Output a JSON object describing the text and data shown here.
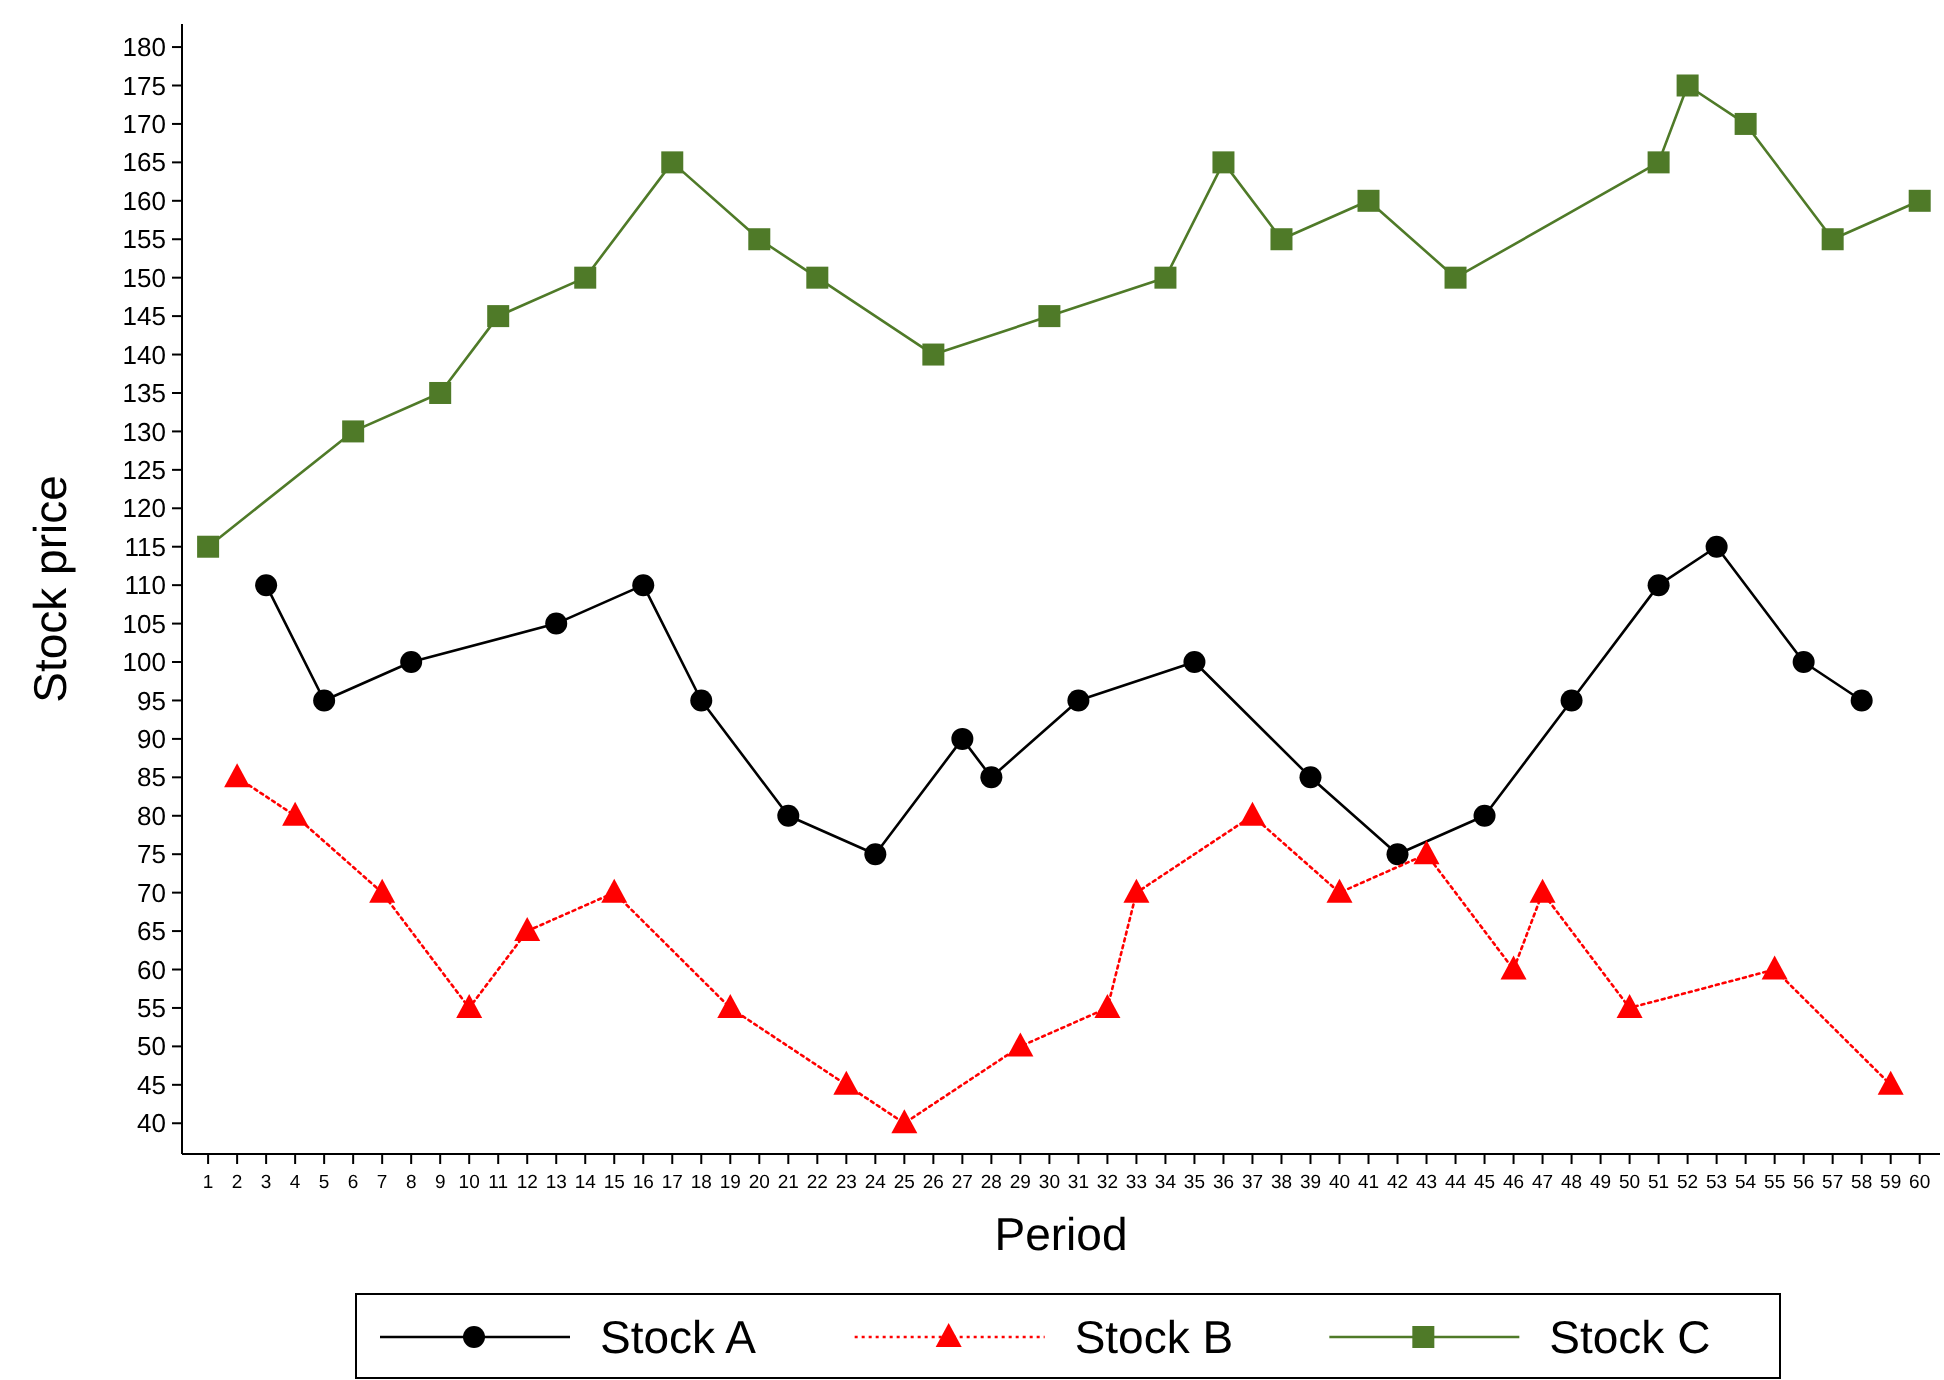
{
  "chart_data": {
    "type": "line",
    "xlabel": "Period",
    "ylabel": "Stock price",
    "xlim": [
      0.1,
      60.7
    ],
    "xticks": [
      1,
      2,
      3,
      4,
      5,
      6,
      7,
      8,
      9,
      10,
      11,
      12,
      13,
      14,
      15,
      16,
      17,
      18,
      19,
      20,
      21,
      22,
      23,
      24,
      25,
      26,
      27,
      28,
      29,
      30,
      31,
      32,
      33,
      34,
      35,
      36,
      37,
      38,
      39,
      40,
      41,
      42,
      43,
      44,
      45,
      46,
      47,
      48,
      49,
      50,
      51,
      52,
      53,
      54,
      55,
      56,
      57,
      58,
      59,
      60
    ],
    "ylim": [
      36,
      183
    ],
    "yticks": [
      40,
      45,
      50,
      55,
      60,
      65,
      70,
      75,
      80,
      85,
      90,
      95,
      100,
      105,
      110,
      115,
      120,
      125,
      130,
      135,
      140,
      145,
      150,
      155,
      160,
      165,
      170,
      175,
      180
    ],
    "grid": false,
    "legend": "bottom",
    "series": [
      {
        "name": "Stock A",
        "color": "#000000",
        "marker": "circle",
        "line_style": "solid",
        "x": [
          3,
          5,
          8,
          13,
          16,
          18,
          21,
          24,
          27,
          28,
          31,
          35,
          39,
          42,
          45,
          48,
          51,
          53,
          56,
          58
        ],
        "values": [
          110,
          95,
          100,
          105,
          110,
          95,
          80,
          75,
          90,
          85,
          95,
          100,
          85,
          75,
          80,
          95,
          110,
          115,
          100,
          95
        ]
      },
      {
        "name": "Stock B",
        "color": "#ff0000",
        "marker": "triangle",
        "line_style": "dotted",
        "x": [
          2,
          4,
          7,
          10,
          12,
          15,
          19,
          23,
          25,
          29,
          32,
          33,
          37,
          40,
          43,
          46,
          47,
          50,
          55,
          59
        ],
        "values": [
          85,
          80,
          70,
          55,
          65,
          70,
          55,
          45,
          40,
          50,
          55,
          70,
          80,
          70,
          75,
          60,
          70,
          55,
          60,
          45
        ]
      },
      {
        "name": "Stock C",
        "color": "#4f7a28",
        "marker": "square",
        "line_style": "solid",
        "x": [
          1,
          6,
          9,
          11,
          14,
          17,
          20,
          22,
          26,
          30,
          34,
          36,
          38,
          41,
          44,
          51,
          52,
          54,
          57,
          60
        ],
        "values": [
          115,
          130,
          135,
          145,
          150,
          165,
          155,
          150,
          140,
          145,
          150,
          165,
          155,
          160,
          150,
          165,
          175,
          170,
          155,
          160
        ]
      }
    ]
  }
}
